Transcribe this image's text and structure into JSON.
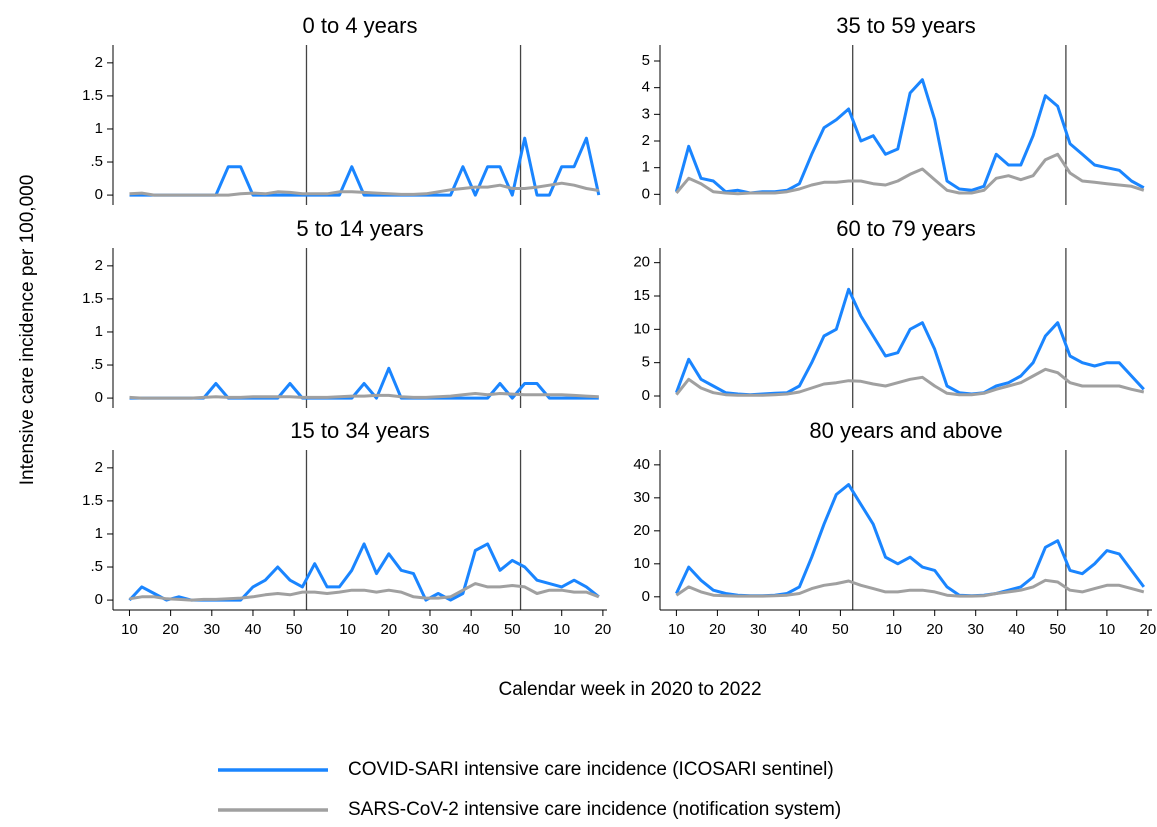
{
  "figure": {
    "xlabel": "Calendar week in 2020 to 2022",
    "ylabel": "Intensive care incidence per 100,000"
  },
  "chart_data": [
    {
      "type": "line",
      "title": "0 to 4 years",
      "x": [
        10,
        13,
        16,
        19,
        22,
        25,
        28,
        31,
        34,
        37,
        40,
        43,
        46,
        49,
        52,
        55,
        58,
        61,
        64,
        67,
        70,
        73,
        76,
        79,
        82,
        85,
        88,
        91,
        94,
        97,
        100,
        103,
        106,
        109,
        112,
        115,
        118,
        121,
        124
      ],
      "xlim": [
        6,
        126
      ],
      "ylim": [
        -0.15,
        2.27
      ],
      "yticks": [
        0,
        {
          "value": 0.5,
          "label": ".5"
        },
        1,
        1.5,
        2
      ],
      "vlines": [
        53,
        105
      ],
      "series": [
        {
          "name": "COVID-SARI intensive care incidence (ICOSARI sentinel)",
          "color": "#1a85ff",
          "values": [
            0,
            0,
            0,
            0,
            0,
            0,
            0,
            0,
            0.43,
            0.43,
            0,
            0,
            0,
            0,
            0,
            0,
            0,
            0,
            0.43,
            0,
            0,
            0,
            0,
            0,
            0,
            0,
            0,
            0.43,
            0,
            0.43,
            0.43,
            0,
            0.86,
            0,
            0,
            0.43,
            0.43,
            0.86,
            0
          ]
        },
        {
          "name": "SARS-CoV-2 intensive care incidence (notification system)",
          "color": "#a0a0a0",
          "values": [
            0.02,
            0.03,
            0,
            0,
            0,
            0,
            0,
            0,
            0,
            0.02,
            0.03,
            0.02,
            0.05,
            0.04,
            0.02,
            0.02,
            0.02,
            0.05,
            0.05,
            0.04,
            0.03,
            0.02,
            0.01,
            0.01,
            0.02,
            0.05,
            0.08,
            0.1,
            0.12,
            0.12,
            0.15,
            0.1,
            0.1,
            0.12,
            0.15,
            0.18,
            0.15,
            0.1,
            0.07
          ]
        }
      ]
    },
    {
      "type": "line",
      "title": "35 to 59 years",
      "x": [
        10,
        13,
        16,
        19,
        22,
        25,
        28,
        31,
        34,
        37,
        40,
        43,
        46,
        49,
        52,
        55,
        58,
        61,
        64,
        67,
        70,
        73,
        76,
        79,
        82,
        85,
        88,
        91,
        94,
        97,
        100,
        103,
        106,
        109,
        112,
        115,
        118,
        121,
        124
      ],
      "xlim": [
        6,
        126
      ],
      "ylim": [
        -0.4,
        5.6
      ],
      "yticks": [
        0,
        1,
        2,
        3,
        4,
        5
      ],
      "vlines": [
        53,
        105
      ],
      "series": [
        {
          "name": "COVID-SARI intensive care incidence (ICOSARI sentinel)",
          "color": "#1a85ff",
          "values": [
            0.1,
            1.8,
            0.6,
            0.5,
            0.1,
            0.15,
            0.05,
            0.1,
            0.1,
            0.15,
            0.4,
            1.5,
            2.5,
            2.8,
            3.2,
            2.0,
            2.2,
            1.5,
            1.7,
            3.8,
            4.3,
            2.8,
            0.5,
            0.2,
            0.15,
            0.3,
            1.5,
            1.1,
            1.1,
            2.2,
            3.7,
            3.3,
            1.9,
            1.5,
            1.1,
            1.0,
            0.9,
            0.5,
            0.25
          ]
        },
        {
          "name": "SARS-CoV-2 intensive care incidence (notification system)",
          "color": "#a0a0a0",
          "values": [
            0.05,
            0.6,
            0.4,
            0.1,
            0.05,
            0.02,
            0.05,
            0.05,
            0.05,
            0.1,
            0.2,
            0.35,
            0.45,
            0.45,
            0.5,
            0.5,
            0.4,
            0.35,
            0.5,
            0.75,
            0.95,
            0.55,
            0.15,
            0.05,
            0.05,
            0.15,
            0.6,
            0.7,
            0.55,
            0.7,
            1.3,
            1.5,
            0.8,
            0.5,
            0.45,
            0.4,
            0.35,
            0.3,
            0.15
          ]
        }
      ]
    },
    {
      "type": "line",
      "title": "5 to 14 years",
      "x": [
        10,
        13,
        16,
        19,
        22,
        25,
        28,
        31,
        34,
        37,
        40,
        43,
        46,
        49,
        52,
        55,
        58,
        61,
        64,
        67,
        70,
        73,
        76,
        79,
        82,
        85,
        88,
        91,
        94,
        97,
        100,
        103,
        106,
        109,
        112,
        115,
        118,
        121,
        124
      ],
      "xlim": [
        6,
        126
      ],
      "ylim": [
        -0.15,
        2.27
      ],
      "yticks": [
        0,
        {
          "value": 0.5,
          "label": ".5"
        },
        1,
        1.5,
        2
      ],
      "vlines": [
        53,
        105
      ],
      "series": [
        {
          "name": "COVID-SARI intensive care incidence (ICOSARI sentinel)",
          "color": "#1a85ff",
          "values": [
            0,
            0,
            0,
            0,
            0,
            0,
            0,
            0.22,
            0,
            0,
            0,
            0,
            0,
            0.22,
            0,
            0,
            0,
            0,
            0,
            0.22,
            0,
            0.45,
            0,
            0,
            0,
            0,
            0,
            0,
            0,
            0,
            0.22,
            0,
            0.22,
            0.22,
            0,
            0,
            0,
            0,
            0
          ]
        },
        {
          "name": "SARS-CoV-2 intensive care incidence (notification system)",
          "color": "#a0a0a0",
          "values": [
            0.01,
            0,
            0,
            0,
            0,
            0,
            0.01,
            0.02,
            0.01,
            0.01,
            0.02,
            0.02,
            0.02,
            0.02,
            0.01,
            0.01,
            0.01,
            0.02,
            0.03,
            0.03,
            0.04,
            0.04,
            0.02,
            0.01,
            0.01,
            0.02,
            0.03,
            0.05,
            0.07,
            0.05,
            0.07,
            0.06,
            0.05,
            0.05,
            0.05,
            0.05,
            0.04,
            0.03,
            0.02
          ]
        }
      ]
    },
    {
      "type": "line",
      "title": "60 to 79 years",
      "x": [
        10,
        13,
        16,
        19,
        22,
        25,
        28,
        31,
        34,
        37,
        40,
        43,
        46,
        49,
        52,
        55,
        58,
        61,
        64,
        67,
        70,
        73,
        76,
        79,
        82,
        85,
        88,
        91,
        94,
        97,
        100,
        103,
        106,
        109,
        112,
        115,
        118,
        121,
        124
      ],
      "xlim": [
        6,
        126
      ],
      "ylim": [
        -1.8,
        22.2
      ],
      "yticks": [
        0,
        5,
        10,
        15,
        20
      ],
      "vlines": [
        53,
        105
      ],
      "series": [
        {
          "name": "COVID-SARI intensive care incidence (ICOSARI sentinel)",
          "color": "#1a85ff",
          "values": [
            0.5,
            5.5,
            2.5,
            1.5,
            0.5,
            0.3,
            0.2,
            0.3,
            0.4,
            0.5,
            1.5,
            5,
            9,
            10,
            16,
            12,
            9,
            6,
            6.5,
            10,
            11,
            7,
            1.5,
            0.5,
            0.3,
            0.5,
            1.5,
            2,
            3,
            5,
            9,
            11,
            6,
            5,
            4.5,
            5,
            5,
            3,
            1
          ]
        },
        {
          "name": "SARS-CoV-2 intensive care incidence (notification system)",
          "color": "#a0a0a0",
          "values": [
            0.2,
            2.5,
            1.2,
            0.5,
            0.2,
            0.1,
            0.1,
            0.1,
            0.2,
            0.3,
            0.6,
            1.2,
            1.8,
            2,
            2.3,
            2.2,
            1.8,
            1.5,
            2,
            2.5,
            2.8,
            1.5,
            0.4,
            0.2,
            0.2,
            0.4,
            1,
            1.5,
            2,
            3,
            4,
            3.5,
            2,
            1.5,
            1.5,
            1.5,
            1.5,
            1,
            0.6
          ]
        }
      ]
    },
    {
      "type": "line",
      "title": "15 to 34 years",
      "x": [
        10,
        13,
        16,
        19,
        22,
        25,
        28,
        31,
        34,
        37,
        40,
        43,
        46,
        49,
        52,
        55,
        58,
        61,
        64,
        67,
        70,
        73,
        76,
        79,
        82,
        85,
        88,
        91,
        94,
        97,
        100,
        103,
        106,
        109,
        112,
        115,
        118,
        121,
        124
      ],
      "xlim": [
        6,
        126
      ],
      "ylim": [
        -0.15,
        2.27
      ],
      "yticks": [
        0,
        {
          "value": 0.5,
          "label": ".5"
        },
        1,
        1.5,
        2
      ],
      "vlines": [
        53,
        105
      ],
      "xticks": [
        10,
        20,
        30,
        40,
        50,
        {
          "value": 63,
          "label": "10"
        },
        {
          "value": 73,
          "label": "20"
        },
        {
          "value": 83,
          "label": "30"
        },
        {
          "value": 93,
          "label": "40"
        },
        {
          "value": 103,
          "label": "50"
        },
        {
          "value": 115,
          "label": "10"
        },
        {
          "value": 125,
          "label": "20"
        }
      ],
      "series": [
        {
          "name": "COVID-SARI intensive care incidence (ICOSARI sentinel)",
          "color": "#1a85ff",
          "values": [
            0,
            0.2,
            0.1,
            0,
            0.05,
            0,
            0,
            0,
            0,
            0,
            0.2,
            0.3,
            0.5,
            0.3,
            0.2,
            0.55,
            0.2,
            0.2,
            0.45,
            0.85,
            0.4,
            0.7,
            0.45,
            0.4,
            0,
            0.1,
            0,
            0.1,
            0.75,
            0.85,
            0.45,
            0.6,
            0.5,
            0.3,
            0.25,
            0.2,
            0.3,
            0.2,
            0.05
          ]
        },
        {
          "name": "SARS-CoV-2 intensive care incidence (notification system)",
          "color": "#a0a0a0",
          "values": [
            0.02,
            0.05,
            0.05,
            0.02,
            0.01,
            0,
            0.01,
            0.01,
            0.02,
            0.03,
            0.05,
            0.08,
            0.1,
            0.08,
            0.12,
            0.12,
            0.1,
            0.12,
            0.15,
            0.15,
            0.12,
            0.15,
            0.12,
            0.05,
            0.03,
            0.03,
            0.05,
            0.15,
            0.25,
            0.2,
            0.2,
            0.22,
            0.2,
            0.1,
            0.15,
            0.15,
            0.12,
            0.12,
            0.05
          ]
        }
      ]
    },
    {
      "type": "line",
      "title": "80 years and above",
      "x": [
        10,
        13,
        16,
        19,
        22,
        25,
        28,
        31,
        34,
        37,
        40,
        43,
        46,
        49,
        52,
        55,
        58,
        61,
        64,
        67,
        70,
        73,
        76,
        79,
        82,
        85,
        88,
        91,
        94,
        97,
        100,
        103,
        106,
        109,
        112,
        115,
        118,
        121,
        124
      ],
      "xlim": [
        6,
        126
      ],
      "ylim": [
        -4,
        44.5
      ],
      "yticks": [
        0,
        10,
        20,
        30,
        40
      ],
      "vlines": [
        53,
        105
      ],
      "xticks": [
        10,
        20,
        30,
        40,
        50,
        {
          "value": 63,
          "label": "10"
        },
        {
          "value": 73,
          "label": "20"
        },
        {
          "value": 83,
          "label": "30"
        },
        {
          "value": 93,
          "label": "40"
        },
        {
          "value": 103,
          "label": "50"
        },
        {
          "value": 115,
          "label": "10"
        },
        {
          "value": 125,
          "label": "20"
        }
      ],
      "series": [
        {
          "name": "COVID-SARI intensive care incidence (ICOSARI sentinel)",
          "color": "#1a85ff",
          "values": [
            1,
            9,
            5,
            2,
            1,
            0.5,
            0.3,
            0.3,
            0.5,
            1,
            3,
            12,
            22,
            31,
            34,
            28,
            22,
            12,
            10,
            12,
            9,
            8,
            3,
            0.5,
            0.3,
            0.5,
            1,
            2,
            3,
            6,
            15,
            17,
            8,
            7,
            10,
            14,
            13,
            8,
            3
          ]
        },
        {
          "name": "SARS-CoV-2 intensive care incidence (notification system)",
          "color": "#a0a0a0",
          "values": [
            0.5,
            3,
            1.5,
            0.5,
            0.3,
            0.2,
            0.2,
            0.2,
            0.3,
            0.5,
            1,
            2.5,
            3.5,
            4,
            4.8,
            3.5,
            2.5,
            1.5,
            1.5,
            2,
            2,
            1.5,
            0.5,
            0.2,
            0.2,
            0.3,
            1,
            1.5,
            2,
            3,
            5,
            4.5,
            2,
            1.5,
            2.5,
            3.5,
            3.5,
            2.5,
            1.5
          ]
        }
      ]
    }
  ]
}
